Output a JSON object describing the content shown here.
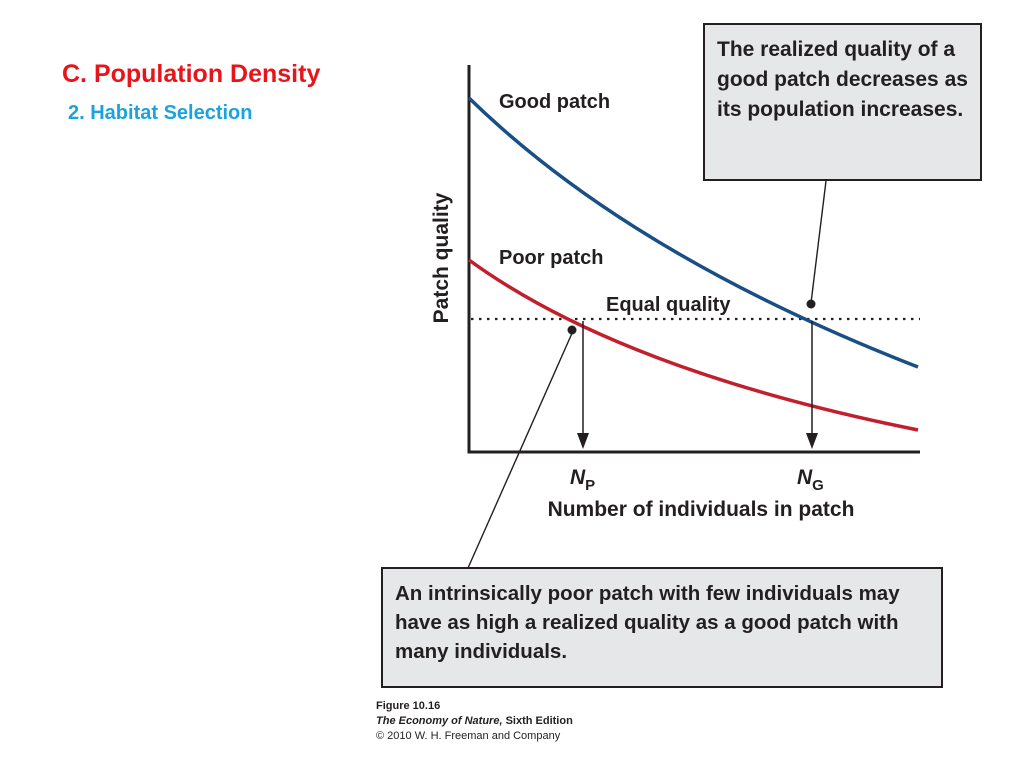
{
  "slide": {
    "title": "C. Population Density",
    "subtitle": "2. Habitat Selection"
  },
  "figure": {
    "y_axis_label": "Patch quality",
    "x_axis_label": "Number of individuals in patch",
    "good_curve_label": "Good patch",
    "poor_curve_label": "Poor patch",
    "equal_label": "Equal quality",
    "np_label": "N",
    "np_subscript": "P",
    "ng_label": "N",
    "ng_subscript": "G",
    "colors": {
      "good": "#1a4f86",
      "poor": "#c11f2c",
      "ink": "#231f20",
      "box": "#e6e7e8"
    }
  },
  "callouts": {
    "top": "The realized quality of a good patch decreases as its population increases.",
    "bottom": "An intrinsically poor patch with few individuals may have as high a realized quality as a good patch with many individuals."
  },
  "credit": {
    "figure_number": "Figure 10.16",
    "book_title": "The Economy of Nature,",
    "edition": " Sixth Edition",
    "copyright": "© 2010 W. H. Freeman and Company"
  }
}
